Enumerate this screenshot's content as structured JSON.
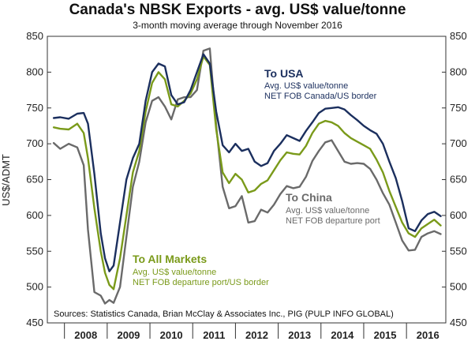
{
  "chart_data": {
    "type": "line",
    "title": "Canada's NBSK Exports - avg. US$ value/tonne",
    "subtitle": "3-month moving average through November 2016",
    "ylabel": "US$/ADMT",
    "xlabel": "",
    "ylim": [
      450,
      850
    ],
    "xlim": [
      2007.6,
      2016.92
    ],
    "yticks": [
      450,
      500,
      550,
      600,
      650,
      700,
      750,
      800,
      850
    ],
    "xtick_labels": [
      "2008",
      "2009",
      "2010",
      "2011",
      "2012",
      "2013",
      "2014",
      "2015",
      "2016"
    ],
    "grid": false,
    "source": "Sources: Statistics Canada, Brian McClay & Associates Inc., PIG (PULP INFO GLOBAL)",
    "series": [
      {
        "name": "To USA",
        "color": "#1b2f5e",
        "annotation_title": "To USA",
        "annotation_lines": [
          "Avg. US$ value/tonne",
          "NET FOB Canada/US border"
        ],
        "x": [
          2007.75,
          2007.9,
          2008.1,
          2008.3,
          2008.45,
          2008.55,
          2008.7,
          2008.85,
          2008.95,
          2009.05,
          2009.15,
          2009.3,
          2009.45,
          2009.6,
          2009.75,
          2009.9,
          2010.05,
          2010.2,
          2010.35,
          2010.5,
          2010.65,
          2010.8,
          2010.95,
          2011.1,
          2011.25,
          2011.4,
          2011.55,
          2011.7,
          2011.85,
          2012.0,
          2012.15,
          2012.3,
          2012.45,
          2012.6,
          2012.75,
          2012.9,
          2013.05,
          2013.2,
          2013.35,
          2013.5,
          2013.65,
          2013.8,
          2013.95,
          2014.1,
          2014.25,
          2014.4,
          2014.55,
          2014.7,
          2014.85,
          2015.0,
          2015.15,
          2015.3,
          2015.45,
          2015.6,
          2015.75,
          2015.9,
          2016.05,
          2016.2,
          2016.35,
          2016.5,
          2016.65,
          2016.8
        ],
        "values": [
          736,
          737,
          735,
          742,
          743,
          728,
          658,
          575,
          540,
          522,
          530,
          590,
          650,
          680,
          700,
          760,
          800,
          812,
          808,
          768,
          755,
          758,
          775,
          800,
          825,
          812,
          745,
          698,
          688,
          700,
          690,
          693,
          675,
          669,
          673,
          690,
          700,
          712,
          708,
          704,
          718,
          730,
          743,
          749,
          750,
          751,
          748,
          740,
          733,
          725,
          719,
          714,
          700,
          675,
          652,
          620,
          582,
          578,
          593,
          602,
          605,
          599
        ]
      },
      {
        "name": "To All Markets",
        "color": "#7a9a1a",
        "annotation_title": "To All Markets",
        "annotation_lines": [
          "Avg. US$ value/tonne",
          "NET FOB departure port/US border"
        ],
        "x": [
          2007.75,
          2007.9,
          2008.1,
          2008.3,
          2008.45,
          2008.55,
          2008.7,
          2008.85,
          2008.95,
          2009.05,
          2009.15,
          2009.3,
          2009.45,
          2009.6,
          2009.75,
          2009.9,
          2010.05,
          2010.2,
          2010.35,
          2010.5,
          2010.65,
          2010.8,
          2010.95,
          2011.1,
          2011.25,
          2011.4,
          2011.55,
          2011.7,
          2011.85,
          2012.0,
          2012.15,
          2012.3,
          2012.45,
          2012.6,
          2012.75,
          2012.9,
          2013.05,
          2013.2,
          2013.35,
          2013.5,
          2013.65,
          2013.8,
          2013.95,
          2014.1,
          2014.25,
          2014.4,
          2014.55,
          2014.7,
          2014.85,
          2015.0,
          2015.15,
          2015.3,
          2015.45,
          2015.6,
          2015.75,
          2015.9,
          2016.05,
          2016.2,
          2016.35,
          2016.5,
          2016.65,
          2016.8
        ],
        "values": [
          723,
          721,
          720,
          728,
          715,
          680,
          610,
          550,
          520,
          503,
          497,
          540,
          600,
          660,
          690,
          745,
          785,
          800,
          790,
          755,
          752,
          760,
          770,
          790,
          822,
          810,
          720,
          660,
          645,
          658,
          650,
          632,
          635,
          644,
          649,
          663,
          677,
          688,
          686,
          685,
          697,
          715,
          728,
          732,
          730,
          725,
          715,
          708,
          703,
          698,
          693,
          678,
          660,
          634,
          612,
          590,
          575,
          570,
          582,
          588,
          594,
          586
        ]
      },
      {
        "name": "To China",
        "color": "#6a6a6a",
        "annotation_title": "To China",
        "annotation_lines": [
          "Avg. US$ value/tonne",
          "NET FOB departure port"
        ],
        "x": [
          2007.75,
          2007.9,
          2008.1,
          2008.3,
          2008.45,
          2008.55,
          2008.7,
          2008.85,
          2008.95,
          2009.05,
          2009.15,
          2009.3,
          2009.45,
          2009.6,
          2009.75,
          2009.9,
          2010.05,
          2010.2,
          2010.35,
          2010.5,
          2010.65,
          2010.8,
          2010.95,
          2011.1,
          2011.25,
          2011.4,
          2011.55,
          2011.7,
          2011.85,
          2012.0,
          2012.15,
          2012.3,
          2012.45,
          2012.6,
          2012.75,
          2012.9,
          2013.05,
          2013.2,
          2013.35,
          2013.5,
          2013.65,
          2013.8,
          2013.95,
          2014.1,
          2014.25,
          2014.4,
          2014.55,
          2014.7,
          2014.85,
          2015.0,
          2015.15,
          2015.3,
          2015.45,
          2015.6,
          2015.75,
          2015.9,
          2016.05,
          2016.2,
          2016.35,
          2016.5,
          2016.65,
          2016.8
        ],
        "values": [
          701,
          693,
          700,
          695,
          670,
          580,
          493,
          488,
          477,
          482,
          478,
          500,
          570,
          640,
          675,
          730,
          760,
          765,
          752,
          734,
          762,
          765,
          765,
          775,
          830,
          833,
          725,
          640,
          610,
          613,
          627,
          590,
          592,
          608,
          604,
          615,
          630,
          641,
          638,
          640,
          654,
          676,
          690,
          702,
          705,
          690,
          675,
          672,
          673,
          672,
          665,
          650,
          631,
          615,
          590,
          565,
          551,
          552,
          570,
          575,
          578,
          574
        ]
      }
    ]
  }
}
